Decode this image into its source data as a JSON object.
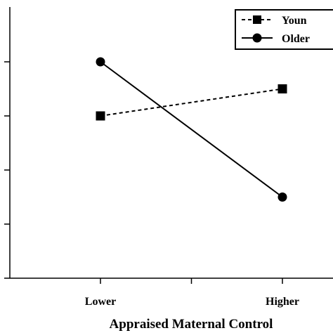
{
  "chart_data": {
    "type": "line",
    "categories": [
      "Lower",
      "Higher"
    ],
    "xlabel": "Appraised Maternal Control",
    "ylabel": "",
    "ylim": [
      0,
      4
    ],
    "series": [
      {
        "name": "Youn",
        "values": [
          3.0,
          3.5
        ],
        "style": "dashed",
        "marker": "square",
        "color": "#000000"
      },
      {
        "name": "Older",
        "values": [
          4.0,
          1.5
        ],
        "style": "solid",
        "marker": "circle",
        "color": "#000000"
      }
    ],
    "legend_position": "top-right",
    "grid": false
  }
}
